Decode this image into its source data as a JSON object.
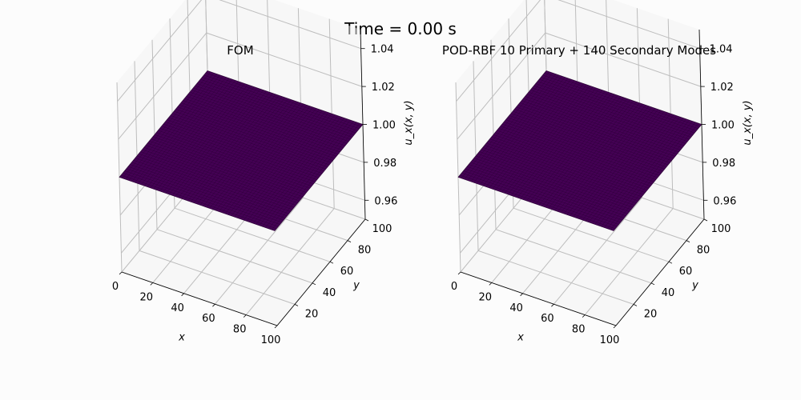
{
  "figure": {
    "title": "Time = 0.00 s"
  },
  "chart_data": [
    {
      "type": "surface",
      "title": "FOM",
      "xlabel": "x",
      "ylabel": "y",
      "zlabel": "u_x(x, y)",
      "xlim": [
        0,
        100
      ],
      "ylim": [
        0,
        100
      ],
      "zlim": [
        0.95,
        1.05
      ],
      "xticks": [
        "0",
        "20",
        "40",
        "60",
        "80",
        "100"
      ],
      "yticks": [
        "20",
        "40",
        "60",
        "80",
        "100"
      ],
      "zticks": [
        "0.96",
        "0.98",
        "1.00",
        "1.02",
        "1.04"
      ],
      "surface_value": 1.0,
      "surface_color": "#440154",
      "grid": true
    },
    {
      "type": "surface",
      "title": "POD-RBF 10 Primary + 140 Secondary Modes",
      "xlabel": "x",
      "ylabel": "y",
      "zlabel": "u_x(x, y)",
      "xlim": [
        0,
        100
      ],
      "ylim": [
        0,
        100
      ],
      "zlim": [
        0.95,
        1.05
      ],
      "xticks": [
        "0",
        "20",
        "40",
        "60",
        "80",
        "100"
      ],
      "yticks": [
        "20",
        "40",
        "60",
        "80",
        "100"
      ],
      "zticks": [
        "0.96",
        "0.98",
        "1.00",
        "1.02",
        "1.04"
      ],
      "surface_value": 1.0,
      "surface_color": "#440154",
      "grid": true
    }
  ]
}
